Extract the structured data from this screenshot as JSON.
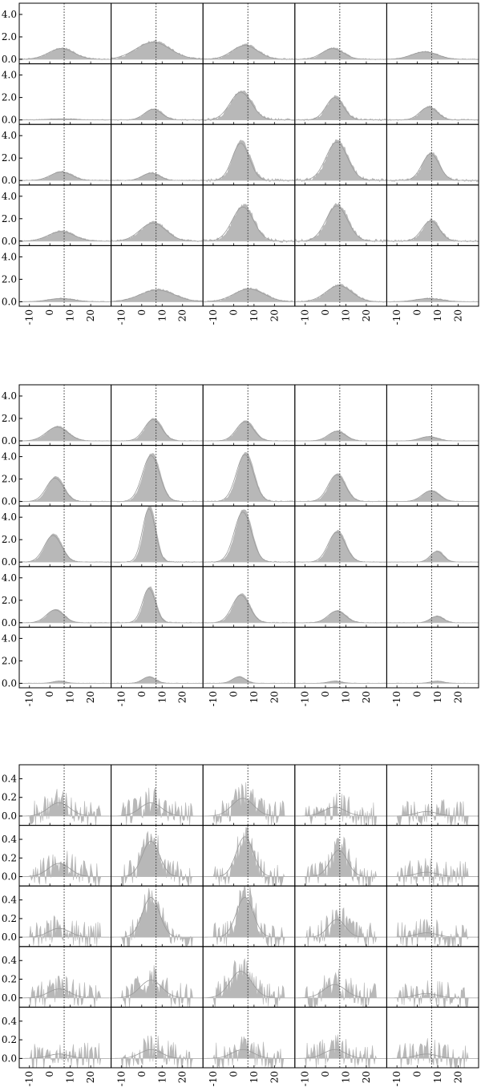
{
  "chart_data": [
    {
      "type": "area",
      "title": "",
      "xlabel": "",
      "ylabel": "",
      "grid": false,
      "legend": "none",
      "layout": {
        "rows": 5,
        "cols": 5
      },
      "xlim": [
        -15,
        30
      ],
      "ylim": [
        -0.4,
        5.0
      ],
      "xticks": [
        -10,
        0,
        10,
        20
      ],
      "xtick_labels": [
        "-10",
        "0",
        "10",
        "20"
      ],
      "yticks": [
        0.0,
        2.0,
        4.0
      ],
      "ytick_labels": [
        "0.0",
        "2.0",
        "4.0"
      ],
      "reference_x": 7,
      "noise": 0.22,
      "panels": [
        [
          [
            1.0,
            6,
            6
          ],
          [
            1.6,
            6,
            8
          ],
          [
            1.3,
            6,
            6
          ],
          [
            1.0,
            4,
            5
          ],
          [
            0.7,
            4,
            6
          ]
        ],
        [
          [
            0.1,
            6,
            6
          ],
          [
            1.0,
            6,
            4
          ],
          [
            2.6,
            4,
            5
          ],
          [
            2.1,
            5,
            4
          ],
          [
            1.2,
            6,
            4
          ]
        ],
        [
          [
            0.8,
            6,
            5
          ],
          [
            0.7,
            5,
            4
          ],
          [
            3.5,
            4,
            4
          ],
          [
            3.6,
            6,
            5
          ],
          [
            2.5,
            7,
            4
          ]
        ],
        [
          [
            0.9,
            6,
            6
          ],
          [
            1.7,
            6,
            6
          ],
          [
            3.2,
            5,
            5
          ],
          [
            3.3,
            6,
            5
          ],
          [
            1.9,
            7,
            4
          ]
        ],
        [
          [
            0.3,
            6,
            6
          ],
          [
            1.1,
            8,
            8
          ],
          [
            1.2,
            8,
            7
          ],
          [
            1.5,
            7,
            6
          ],
          [
            0.3,
            6,
            6
          ]
        ]
      ],
      "secondary_color": "#c8c8c8",
      "fill_color": "#b8b8b8"
    },
    {
      "type": "area",
      "title": "",
      "xlabel": "",
      "ylabel": "",
      "grid": false,
      "legend": "none",
      "layout": {
        "rows": 5,
        "cols": 5
      },
      "xlim": [
        -15,
        30
      ],
      "ylim": [
        -0.4,
        5.0
      ],
      "xticks": [
        -10,
        0,
        10,
        20
      ],
      "xtick_labels": [
        "-10",
        "0",
        "10",
        "20"
      ],
      "yticks": [
        0.0,
        2.0,
        4.0
      ],
      "ytick_labels": [
        "0.0",
        "2.0",
        "4.0"
      ],
      "reference_x": 7,
      "noise": 0.04,
      "panels": [
        [
          [
            1.3,
            4,
            5
          ],
          [
            2.0,
            6,
            4
          ],
          [
            1.8,
            6,
            4
          ],
          [
            0.9,
            6,
            4
          ],
          [
            0.4,
            6,
            4
          ]
        ],
        [
          [
            2.2,
            3,
            4
          ],
          [
            4.3,
            5,
            4
          ],
          [
            4.4,
            6,
            4
          ],
          [
            2.5,
            6,
            4
          ],
          [
            1.0,
            7,
            4
          ]
        ],
        [
          [
            2.5,
            2,
            4
          ],
          [
            5.0,
            4,
            3
          ],
          [
            4.7,
            5,
            4
          ],
          [
            2.8,
            6,
            4
          ],
          [
            1.0,
            10,
            3
          ]
        ],
        [
          [
            1.2,
            3,
            4
          ],
          [
            3.2,
            4,
            3
          ],
          [
            2.6,
            4,
            4
          ],
          [
            1.1,
            6,
            4
          ],
          [
            0.6,
            10,
            3
          ]
        ],
        [
          [
            0.2,
            5,
            3
          ],
          [
            0.6,
            4,
            3
          ],
          [
            0.6,
            3,
            3
          ],
          [
            0.2,
            5,
            3
          ],
          [
            0.2,
            10,
            3
          ]
        ]
      ],
      "secondary_color": "#c8c8c8",
      "fill_color": "#b8b8b8"
    },
    {
      "type": "area",
      "title": "",
      "xlabel": "",
      "ylabel": "",
      "grid": false,
      "legend": "none",
      "layout": {
        "rows": 5,
        "cols": 5
      },
      "xlim": [
        -15,
        30
      ],
      "ylim": [
        -0.1,
        0.55
      ],
      "xticks": [
        -10,
        0,
        10,
        20
      ],
      "xtick_labels": [
        "-10",
        "0",
        "10",
        "20"
      ],
      "yticks": [
        0.0,
        0.2,
        0.4
      ],
      "ytick_labels": [
        "0.0",
        "0.2",
        "0.4"
      ],
      "reference_x": 7,
      "noise": 0.17,
      "panels": [
        [
          [
            0.15,
            5,
            5
          ],
          [
            0.15,
            5,
            5
          ],
          [
            0.2,
            5,
            5
          ],
          [
            0.1,
            5,
            5
          ],
          [
            0.05,
            5,
            5
          ]
        ],
        [
          [
            0.15,
            5,
            5
          ],
          [
            0.4,
            5,
            4
          ],
          [
            0.45,
            6,
            4
          ],
          [
            0.3,
            7,
            4
          ],
          [
            0.05,
            5,
            5
          ]
        ],
        [
          [
            0.1,
            5,
            5
          ],
          [
            0.45,
            5,
            4
          ],
          [
            0.45,
            6,
            4
          ],
          [
            0.2,
            6,
            4
          ],
          [
            0.05,
            5,
            5
          ]
        ],
        [
          [
            0.1,
            5,
            5
          ],
          [
            0.2,
            5,
            5
          ],
          [
            0.3,
            4,
            5
          ],
          [
            0.15,
            5,
            5
          ],
          [
            0.05,
            5,
            5
          ]
        ],
        [
          [
            0.05,
            5,
            5
          ],
          [
            0.1,
            5,
            5
          ],
          [
            0.1,
            5,
            5
          ],
          [
            0.1,
            5,
            5
          ],
          [
            0.05,
            5,
            5
          ]
        ]
      ],
      "secondary_color": "#c8c8c8",
      "fill_color": "#b8b8b8"
    }
  ]
}
